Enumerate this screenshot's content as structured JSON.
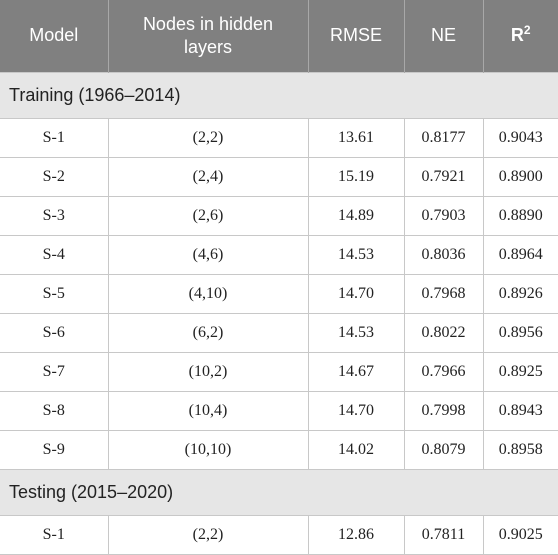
{
  "table": {
    "headers": {
      "model": "Model",
      "nodes": "Nodes in hidden layers",
      "rmse": "RMSE",
      "ne": "NE",
      "r2_base": "R",
      "r2_exp": "2"
    },
    "training": {
      "label": "Training (1966–2014)",
      "rows": [
        [
          "S-1",
          "(2,2)",
          "13.61",
          "0.8177",
          "0.9043"
        ],
        [
          "S-2",
          "(2,4)",
          "15.19",
          "0.7921",
          "0.8900"
        ],
        [
          "S-3",
          "(2,6)",
          "14.89",
          "0.7903",
          "0.8890"
        ],
        [
          "S-4",
          "(4,6)",
          "14.53",
          "0.8036",
          "0.8964"
        ],
        [
          "S-5",
          "(4,10)",
          "14.70",
          "0.7968",
          "0.8926"
        ],
        [
          "S-6",
          "(6,2)",
          "14.53",
          "0.8022",
          "0.8956"
        ],
        [
          "S-7",
          "(10,2)",
          "14.67",
          "0.7966",
          "0.8925"
        ],
        [
          "S-8",
          "(10,4)",
          "14.70",
          "0.7998",
          "0.8943"
        ],
        [
          "S-9",
          "(10,10)",
          "14.02",
          "0.8079",
          "0.8958"
        ]
      ]
    },
    "testing": {
      "label": "Testing (2015–2020)",
      "rows": [
        [
          "S-1",
          "(2,2)",
          "12.86",
          "0.7811",
          "0.9025"
        ]
      ]
    }
  }
}
